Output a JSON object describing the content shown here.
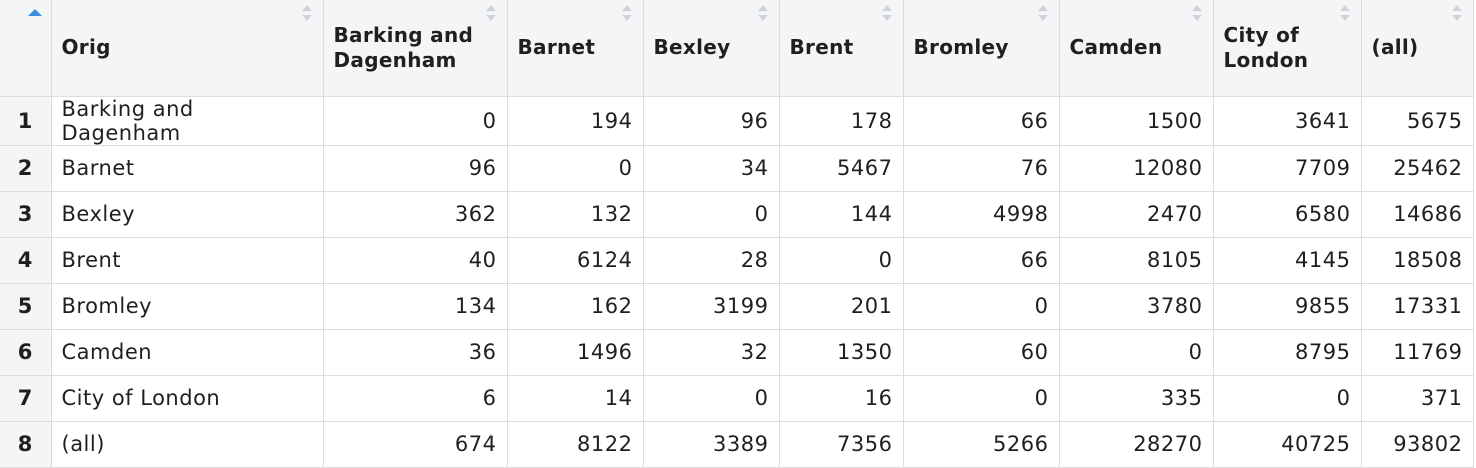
{
  "table": {
    "columns": [
      "Orig",
      "Barking and Dagenham",
      "Barnet",
      "Bexley",
      "Brent",
      "Bromley",
      "Camden",
      "City of London",
      "(all)"
    ],
    "rows": [
      {
        "n": "1",
        "cells": [
          "Barking and Dagenham",
          "0",
          "194",
          "96",
          "178",
          "66",
          "1500",
          "3641",
          "5675"
        ]
      },
      {
        "n": "2",
        "cells": [
          "Barnet",
          "96",
          "0",
          "34",
          "5467",
          "76",
          "12080",
          "7709",
          "25462"
        ]
      },
      {
        "n": "3",
        "cells": [
          "Bexley",
          "362",
          "132",
          "0",
          "144",
          "4998",
          "2470",
          "6580",
          "14686"
        ]
      },
      {
        "n": "4",
        "cells": [
          "Brent",
          "40",
          "6124",
          "28",
          "0",
          "66",
          "8105",
          "4145",
          "18508"
        ]
      },
      {
        "n": "5",
        "cells": [
          "Bromley",
          "134",
          "162",
          "3199",
          "201",
          "0",
          "3780",
          "9855",
          "17331"
        ]
      },
      {
        "n": "6",
        "cells": [
          "Camden",
          "36",
          "1496",
          "32",
          "1350",
          "60",
          "0",
          "8795",
          "11769"
        ]
      },
      {
        "n": "7",
        "cells": [
          "City of London",
          "6",
          "14",
          "0",
          "16",
          "0",
          "335",
          "0",
          "371"
        ]
      },
      {
        "n": "8",
        "cells": [
          "(all)",
          "674",
          "8122",
          "3389",
          "7356",
          "5266",
          "28270",
          "40725",
          "93802"
        ]
      }
    ]
  },
  "colors": {
    "sort_active": "#3b8fe0",
    "header_bg": "#f4f5f6",
    "border": "#dcdcdc"
  }
}
